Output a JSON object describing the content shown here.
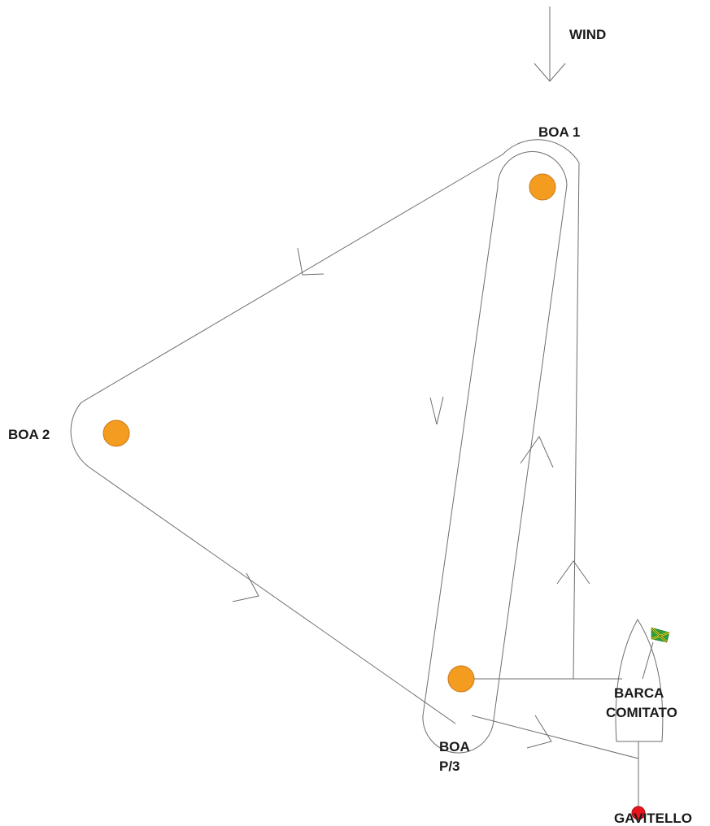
{
  "labels": {
    "wind": "WIND",
    "boa1": "BOA 1",
    "boa2": "BOA 2",
    "boa_p3_line1": "BOA",
    "boa_p3_line2": "P/3",
    "committee_line1": "BARCA",
    "committee_line2": "COMITATO",
    "gavitello": "GAVITELLO"
  },
  "colors": {
    "buoy": "#f39c1f",
    "buoy_outline": "#c9791a",
    "gavitello": "#e8141c",
    "course_line": "#6e6e6e",
    "text": "#1a1a1a",
    "flag_green": "#2e9e3a",
    "flag_yellow": "#f3e21a"
  },
  "icons": {
    "wind": "down-arrow-icon",
    "flag": "flag-icon",
    "boat": "committee-boat-icon"
  }
}
